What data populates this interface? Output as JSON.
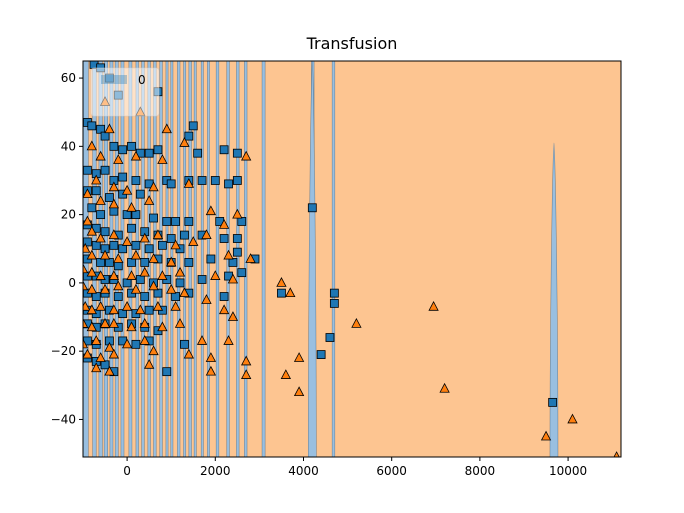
{
  "chart_data": {
    "type": "scatter",
    "title": "Transfusion",
    "xlabel": "",
    "ylabel": "",
    "xlim": [
      -1000,
      11200
    ],
    "ylim": [
      -51,
      65
    ],
    "x_ticks": [
      0,
      2000,
      4000,
      6000,
      8000,
      10000
    ],
    "x_tick_labels": [
      "0",
      "2000",
      "4000",
      "6000",
      "8000",
      "10000"
    ],
    "y_ticks": [
      -40,
      -20,
      0,
      20,
      40,
      60
    ],
    "y_tick_labels": [
      "−40",
      "−20",
      "0",
      "20",
      "40",
      "60"
    ],
    "grid": false,
    "legend": {
      "placement": "top-left",
      "entries": [
        "0"
      ]
    },
    "colors": {
      "region_class_0": "#99bfe0",
      "region_class_1": "#fdc591",
      "marker_class_0": "#1f77b4",
      "marker_class_1": "#ff7f0e",
      "marker_edge": "#000000"
    },
    "decision_regions": {
      "background_class": 1,
      "class_0_bands_x": [
        [
          -1000,
          -880
        ],
        [
          -780,
          -700
        ],
        [
          -640,
          -560
        ],
        [
          -520,
          -440
        ],
        [
          -390,
          -320
        ],
        [
          -270,
          -200
        ],
        [
          -140,
          -70
        ],
        [
          40,
          110
        ],
        [
          200,
          260
        ],
        [
          330,
          390
        ],
        [
          470,
          530
        ],
        [
          600,
          660
        ],
        [
          740,
          800
        ],
        [
          880,
          930
        ],
        [
          990,
          1040
        ],
        [
          1140,
          1200
        ],
        [
          1280,
          1330
        ],
        [
          1400,
          1460
        ],
        [
          1520,
          1570
        ],
        [
          1680,
          1730
        ],
        [
          1820,
          1870
        ],
        [
          2020,
          2080
        ],
        [
          2260,
          2320
        ],
        [
          2480,
          2540
        ],
        [
          2660,
          2720
        ],
        [
          3060,
          3130
        ],
        [
          4180,
          4240
        ],
        [
          4650,
          4710
        ]
      ],
      "class_0_spikes": [
        {
          "x": 4200,
          "y_min": -51,
          "y_max": 65
        },
        {
          "x": 9680,
          "y_min": -51,
          "y_max": 41
        }
      ]
    },
    "series": [
      {
        "class": 0,
        "marker": "square",
        "points": [
          [
            -750,
            64
          ],
          [
            -600,
            63
          ],
          [
            -400,
            60
          ],
          [
            -200,
            55
          ],
          [
            700,
            56
          ],
          [
            -900,
            47
          ],
          [
            -800,
            46
          ],
          [
            -600,
            45
          ],
          [
            -500,
            43
          ],
          [
            -300,
            40
          ],
          [
            -100,
            39
          ],
          [
            100,
            40
          ],
          [
            300,
            38
          ],
          [
            500,
            38
          ],
          [
            700,
            39
          ],
          [
            1500,
            46
          ],
          [
            1400,
            43
          ],
          [
            1600,
            38
          ],
          [
            2200,
            39
          ],
          [
            2500,
            38
          ],
          [
            -900,
            33
          ],
          [
            -700,
            32
          ],
          [
            -500,
            33
          ],
          [
            -300,
            30
          ],
          [
            -100,
            31
          ],
          [
            200,
            30
          ],
          [
            500,
            29
          ],
          [
            900,
            30
          ],
          [
            1000,
            29
          ],
          [
            1400,
            30
          ],
          [
            1700,
            30
          ],
          [
            2000,
            30
          ],
          [
            2300,
            29
          ],
          [
            2500,
            30
          ],
          [
            -900,
            27
          ],
          [
            -700,
            27
          ],
          [
            -400,
            25
          ],
          [
            -100,
            26
          ],
          [
            300,
            26
          ],
          [
            -800,
            22
          ],
          [
            -600,
            20
          ],
          [
            -300,
            21
          ],
          [
            0,
            20
          ],
          [
            200,
            20
          ],
          [
            600,
            19
          ],
          [
            900,
            18
          ],
          [
            1100,
            18
          ],
          [
            1400,
            18
          ],
          [
            2100,
            18
          ],
          [
            2600,
            18
          ],
          [
            4200,
            22
          ],
          [
            -900,
            17
          ],
          [
            -700,
            16
          ],
          [
            -500,
            15
          ],
          [
            -200,
            14
          ],
          [
            100,
            16
          ],
          [
            400,
            15
          ],
          [
            700,
            14
          ],
          [
            1000,
            13
          ],
          [
            1300,
            14
          ],
          [
            1700,
            14
          ],
          [
            2200,
            13
          ],
          [
            2500,
            13
          ],
          [
            -900,
            12
          ],
          [
            -700,
            11
          ],
          [
            -500,
            10
          ],
          [
            -300,
            11
          ],
          [
            -100,
            10
          ],
          [
            200,
            11
          ],
          [
            500,
            10
          ],
          [
            800,
            11
          ],
          [
            1200,
            10
          ],
          [
            2500,
            9
          ],
          [
            -900,
            7
          ],
          [
            -600,
            6
          ],
          [
            -400,
            6
          ],
          [
            -200,
            5
          ],
          [
            100,
            6
          ],
          [
            400,
            6
          ],
          [
            700,
            7
          ],
          [
            1000,
            6
          ],
          [
            1400,
            6
          ],
          [
            1900,
            7
          ],
          [
            2400,
            6
          ],
          [
            2900,
            7
          ],
          [
            -900,
            2
          ],
          [
            -700,
            2
          ],
          [
            -500,
            1
          ],
          [
            -300,
            1
          ],
          [
            0,
            0
          ],
          [
            300,
            1
          ],
          [
            600,
            0
          ],
          [
            900,
            1
          ],
          [
            1200,
            0
          ],
          [
            1700,
            1
          ],
          [
            2300,
            2
          ],
          [
            2600,
            3
          ],
          [
            -900,
            -3
          ],
          [
            -700,
            -4
          ],
          [
            -500,
            -3
          ],
          [
            -200,
            -4
          ],
          [
            100,
            -3
          ],
          [
            400,
            -4
          ],
          [
            700,
            -3
          ],
          [
            1100,
            -4
          ],
          [
            1400,
            -3
          ],
          [
            2200,
            -4
          ],
          [
            3500,
            -3
          ],
          [
            4700,
            -3
          ],
          [
            4700,
            -6
          ],
          [
            -900,
            -8
          ],
          [
            -700,
            -9
          ],
          [
            -400,
            -8
          ],
          [
            -100,
            -9
          ],
          [
            200,
            -9
          ],
          [
            500,
            -8
          ],
          [
            800,
            -8
          ],
          [
            -900,
            -12
          ],
          [
            -700,
            -13
          ],
          [
            -500,
            -12
          ],
          [
            -200,
            -13
          ],
          [
            100,
            -12
          ],
          [
            400,
            -13
          ],
          [
            700,
            -14
          ],
          [
            -900,
            -17
          ],
          [
            -700,
            -18
          ],
          [
            -400,
            -17
          ],
          [
            -100,
            -17
          ],
          [
            200,
            -18
          ],
          [
            500,
            -17
          ],
          [
            1300,
            -18
          ],
          [
            4600,
            -16
          ],
          [
            4400,
            -21
          ],
          [
            -900,
            -22
          ],
          [
            -700,
            -23
          ],
          [
            -500,
            -24
          ],
          [
            -300,
            -26
          ],
          [
            900,
            -26
          ],
          [
            9650,
            -35
          ]
        ]
      },
      {
        "class": 1,
        "marker": "triangle",
        "points": [
          [
            -500,
            53
          ],
          [
            -400,
            45
          ],
          [
            300,
            50
          ],
          [
            900,
            45
          ],
          [
            -800,
            40
          ],
          [
            -600,
            37
          ],
          [
            -200,
            36
          ],
          [
            200,
            37
          ],
          [
            800,
            36
          ],
          [
            1300,
            41
          ],
          [
            2700,
            37
          ],
          [
            -700,
            30
          ],
          [
            -300,
            28
          ],
          [
            0,
            27
          ],
          [
            600,
            28
          ],
          [
            1400,
            29
          ],
          [
            -900,
            26
          ],
          [
            -600,
            24
          ],
          [
            -300,
            23
          ],
          [
            100,
            22
          ],
          [
            500,
            24
          ],
          [
            1900,
            21
          ],
          [
            2500,
            20
          ],
          [
            2200,
            17
          ],
          [
            1800,
            14
          ],
          [
            -900,
            18
          ],
          [
            -800,
            15
          ],
          [
            -600,
            13
          ],
          [
            -300,
            14
          ],
          [
            0,
            12
          ],
          [
            400,
            13
          ],
          [
            700,
            14
          ],
          [
            1100,
            11
          ],
          [
            1500,
            12
          ],
          [
            -950,
            10
          ],
          [
            -800,
            8
          ],
          [
            -500,
            8
          ],
          [
            -200,
            7
          ],
          [
            200,
            8
          ],
          [
            600,
            7
          ],
          [
            1000,
            6
          ],
          [
            2300,
            8
          ],
          [
            2800,
            7
          ],
          [
            -1000,
            4
          ],
          [
            -800,
            3
          ],
          [
            -600,
            2
          ],
          [
            -300,
            2
          ],
          [
            100,
            2
          ],
          [
            400,
            3
          ],
          [
            800,
            2
          ],
          [
            1200,
            3
          ],
          [
            2000,
            2
          ],
          [
            2400,
            1
          ],
          [
            -1000,
            -1
          ],
          [
            -800,
            -2
          ],
          [
            -500,
            -2
          ],
          [
            -200,
            -1
          ],
          [
            200,
            -2
          ],
          [
            600,
            -1
          ],
          [
            1000,
            -2
          ],
          [
            1300,
            -3
          ],
          [
            3500,
            0
          ],
          [
            3700,
            -3
          ],
          [
            -950,
            -7
          ],
          [
            -800,
            -8
          ],
          [
            -600,
            -7
          ],
          [
            -300,
            -8
          ],
          [
            0,
            -7
          ],
          [
            300,
            -8
          ],
          [
            700,
            -7
          ],
          [
            1100,
            -7
          ],
          [
            1800,
            -5
          ],
          [
            2200,
            -8
          ],
          [
            2400,
            -10
          ],
          [
            5200,
            -12
          ],
          [
            6950,
            -7
          ],
          [
            -1000,
            -12
          ],
          [
            -800,
            -13
          ],
          [
            -500,
            -12
          ],
          [
            -300,
            -12
          ],
          [
            100,
            -13
          ],
          [
            400,
            -12
          ],
          [
            800,
            -13
          ],
          [
            1200,
            -12
          ],
          [
            -1000,
            -18
          ],
          [
            -700,
            -17
          ],
          [
            -400,
            -19
          ],
          [
            0,
            -18
          ],
          [
            400,
            -17
          ],
          [
            1700,
            -17
          ],
          [
            2300,
            -17
          ],
          [
            3900,
            -22
          ],
          [
            -900,
            -21
          ],
          [
            -600,
            -22
          ],
          [
            -300,
            -21
          ],
          [
            600,
            -20
          ],
          [
            1400,
            -21
          ],
          [
            1900,
            -22
          ],
          [
            2700,
            -23
          ],
          [
            3600,
            -27
          ],
          [
            7200,
            -31
          ],
          [
            -700,
            -25
          ],
          [
            -400,
            -26
          ],
          [
            500,
            -24
          ],
          [
            1900,
            -26
          ],
          [
            2700,
            -27
          ],
          [
            3900,
            -32
          ],
          [
            9500,
            -45
          ],
          [
            10100,
            -40
          ],
          [
            11100,
            -51
          ]
        ]
      }
    ]
  }
}
